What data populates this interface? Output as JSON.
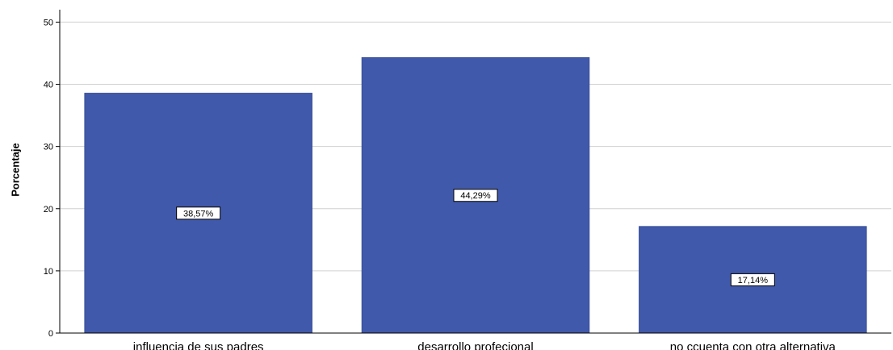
{
  "chart_data": {
    "type": "bar",
    "categories": [
      "influencia de sus padres",
      "desarrollo profecional",
      "no ccuenta con otra alternativa"
    ],
    "values": [
      38.57,
      44.29,
      17.14
    ],
    "data_labels": [
      "38,57%",
      "44,29%",
      "17,14%"
    ],
    "ylabel": "Porcentaje",
    "xlabel": "",
    "ylim": [
      0,
      52
    ],
    "yticks": [
      "0",
      "10",
      "20",
      "30",
      "40",
      "50"
    ],
    "grid": "horizontal",
    "colors": {
      "bar": "#4159AA",
      "grid": "#d0d0d0",
      "axis": "#000000"
    }
  }
}
